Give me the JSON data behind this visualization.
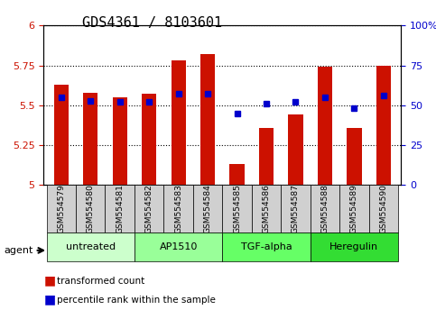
{
  "title": "GDS4361 / 8103601",
  "samples": [
    "GSM554579",
    "GSM554580",
    "GSM554581",
    "GSM554582",
    "GSM554583",
    "GSM554584",
    "GSM554585",
    "GSM554586",
    "GSM554587",
    "GSM554588",
    "GSM554589",
    "GSM554590"
  ],
  "red_values": [
    5.63,
    5.58,
    5.55,
    5.57,
    5.78,
    5.82,
    5.13,
    5.36,
    5.44,
    5.74,
    5.36,
    5.75
  ],
  "blue_values": [
    55,
    53,
    52,
    52,
    57,
    57,
    45,
    51,
    52,
    55,
    48,
    56
  ],
  "ylim_left": [
    5.0,
    6.0
  ],
  "ylim_right": [
    0,
    100
  ],
  "yticks_left": [
    5.0,
    5.25,
    5.5,
    5.75,
    6.0
  ],
  "yticks_right": [
    0,
    25,
    50,
    75,
    100
  ],
  "ytick_labels_left": [
    "5",
    "5.25",
    "5.5",
    "5.75",
    "6"
  ],
  "ytick_labels_right": [
    "0",
    "25",
    "50",
    "75",
    "100%"
  ],
  "groups": [
    {
      "label": "untreated",
      "start": 0,
      "end": 3,
      "color": "#ccffcc"
    },
    {
      "label": "AP1510",
      "start": 3,
      "end": 6,
      "color": "#99ff99"
    },
    {
      "label": "TGF-alpha",
      "start": 6,
      "end": 9,
      "color": "#66ff66"
    },
    {
      "label": "Heregulin",
      "start": 9,
      "end": 12,
      "color": "#33dd33"
    }
  ],
  "bar_color": "#cc1100",
  "dot_color": "#0000cc",
  "bar_width": 0.5,
  "grid_color": "#000000",
  "agent_label": "agent",
  "legend_red": "transformed count",
  "legend_blue": "percentile rank within the sample",
  "bg_color": "#ffffff",
  "plot_bg": "#ffffff",
  "title_fontsize": 11,
  "tick_fontsize": 8,
  "label_fontsize": 8
}
